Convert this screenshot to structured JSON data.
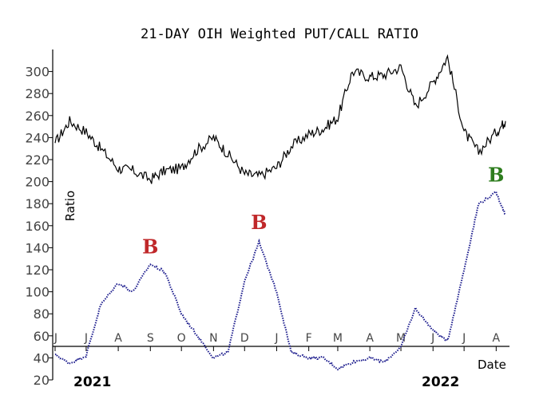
{
  "chart_data": {
    "type": "line",
    "title": "21-DAY OIH Weighted PUT/CALL RATIO",
    "ylabel": "Ratio",
    "xlabel": "Date",
    "ylim": [
      20,
      320
    ],
    "yticks": [
      20,
      40,
      60,
      80,
      100,
      120,
      140,
      160,
      180,
      200,
      220,
      240,
      260,
      280,
      300
    ],
    "grid": false,
    "month_labels": [
      "J",
      "J",
      "A",
      "S",
      "O",
      "N",
      "D",
      "J",
      "F",
      "M",
      "A",
      "M",
      "J",
      "J",
      "A"
    ],
    "year_labels": [
      "2021",
      "2022"
    ],
    "x": [
      "2021-06-01",
      "2021-06-15",
      "2021-07-01",
      "2021-07-15",
      "2021-08-01",
      "2021-08-15",
      "2021-09-01",
      "2021-09-15",
      "2021-10-01",
      "2021-10-15",
      "2021-11-01",
      "2021-11-15",
      "2021-12-01",
      "2021-12-15",
      "2022-01-01",
      "2022-01-15",
      "2022-02-01",
      "2022-02-15",
      "2022-03-01",
      "2022-03-15",
      "2022-04-01",
      "2022-04-15",
      "2022-05-01",
      "2022-05-15",
      "2022-06-01",
      "2022-06-15",
      "2022-07-01",
      "2022-07-15",
      "2022-08-01",
      "2022-08-10"
    ],
    "series": [
      {
        "name": "",
        "color": "#000000",
        "style": "solid",
        "values": [
          235,
          255,
          245,
          230,
          212,
          210,
          202,
          210,
          212,
          228,
          240,
          225,
          207,
          205,
          213,
          232,
          243,
          248,
          258,
          300,
          295,
          297,
          304,
          268,
          290,
          313,
          245,
          227,
          245,
          255
        ]
      },
      {
        "name": "",
        "color": "#1a1a8c",
        "style": "dotted",
        "values": [
          43,
          35,
          42,
          88,
          108,
          100,
          125,
          118,
          80,
          62,
          40,
          45,
          110,
          145,
          100,
          45,
          40,
          40,
          30,
          36,
          40,
          36,
          50,
          85,
          65,
          55,
          120,
          180,
          190,
          170
        ]
      }
    ],
    "signals": [
      {
        "label": "B",
        "x": "2021-09-01",
        "y": 135,
        "color": "#c0282a"
      },
      {
        "label": "B",
        "x": "2021-12-15",
        "y": 157,
        "color": "#c0282a"
      },
      {
        "label": "B",
        "x": "2022-08-01",
        "y": 200,
        "color": "#2e7d1e"
      }
    ]
  }
}
